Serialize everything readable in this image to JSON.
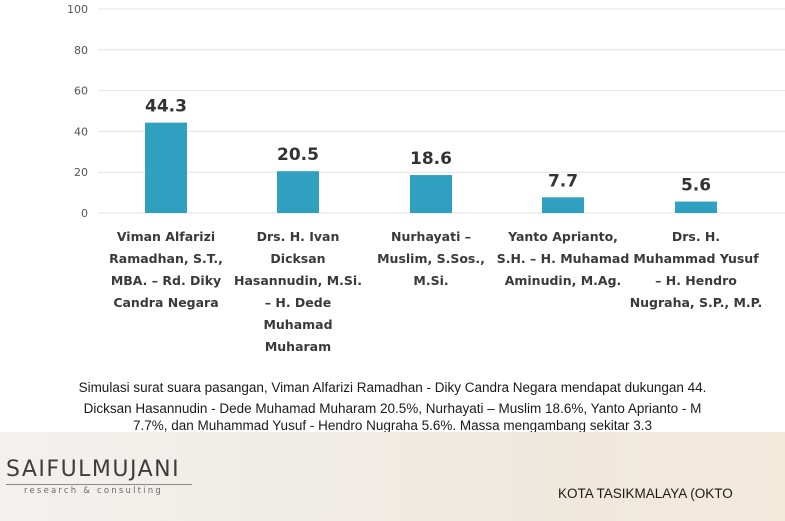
{
  "chart_data": {
    "type": "bar",
    "categories": [
      "Viman Alfarizi Ramadhan, S.T., MBA. - Rd. Diky Candra Negara",
      "Drs. H. Ivan Dicksan Hasannudin, M.Si. - H. Dede Muhamad Muharam",
      "Nurhayati - Muslim, S.Sos., M.Si.",
      "Yanto Aprianto, S.H. - H. Muhamad Aminudin, M.Ag.",
      "Drs. H. Muhammad Yusuf - H. Hendro Nugraha, S.P., M.P."
    ],
    "values": [
      44.3,
      20.5,
      18.6,
      7.7,
      5.6
    ],
    "value_labels": [
      "44.3",
      "20.5",
      "18.6",
      "7.7",
      "5.6"
    ],
    "ylim": [
      0,
      100
    ],
    "yticks": [
      "0",
      "20",
      "40",
      "60",
      "80",
      "100"
    ],
    "grid": true,
    "bar_color": "#2fa0c0",
    "category_label_lines": [
      [
        "Viman Alfarizi",
        "Ramadhan, S.T.,",
        "MBA. – Rd. Diky",
        "Candra Negara"
      ],
      [
        "Drs. H. Ivan",
        "Dicksan",
        "Hasannudin, M.Si.",
        "– H. Dede",
        "Muhamad",
        "Muharam"
      ],
      [
        "Nurhayati –",
        "Muslim, S.Sos.,",
        "M.Si."
      ],
      [
        "Yanto Aprianto,",
        "S.H. – H. Muhamad",
        "Aminudin, M.Ag."
      ],
      [
        "Drs. H.",
        "Muhammad Yusuf",
        "– H. Hendro",
        "Nugraha, S.P., M.P."
      ]
    ]
  },
  "caption": {
    "line1": "Simulasi surat suara pasangan, Viman Alfarizi Ramadhan - Diky Candra Negara mendapat dukungan 44.",
    "line2": "Dicksan Hasannudin - Dede Muhamad Muharam 20.5%, Nurhayati – Muslim 18.6%, Yanto Aprianto - M",
    "line3": "7.7%, dan Muhammad Yusuf - Hendro Nugraha 5.6%. Massa mengambang sekitar 3.3"
  },
  "footer": {
    "logo": "SAIFULMUJANI",
    "logo_sub": "research & consulting",
    "city": "KOTA TASIKMALAYA (OKTO"
  }
}
